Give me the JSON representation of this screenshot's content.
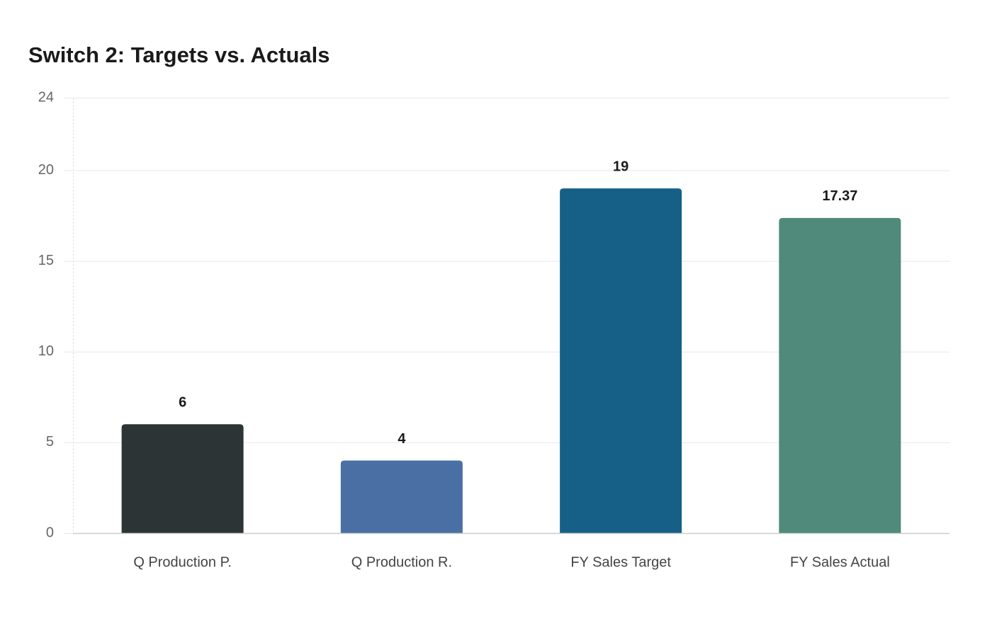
{
  "chart_data": {
    "type": "bar",
    "title": "Switch 2: Targets vs. Actuals",
    "categories": [
      "Q Production P.",
      "Q Production R.",
      "FY Sales Target",
      "FY Sales Actual"
    ],
    "values": [
      6,
      4,
      19,
      17.37
    ],
    "colors": [
      "#2d3436",
      "#4a6fa5",
      "#166088",
      "#4f8a7a"
    ],
    "ylim": [
      0,
      24
    ],
    "yticks": [
      0,
      5,
      10,
      15,
      20,
      24
    ],
    "grid": true
  }
}
